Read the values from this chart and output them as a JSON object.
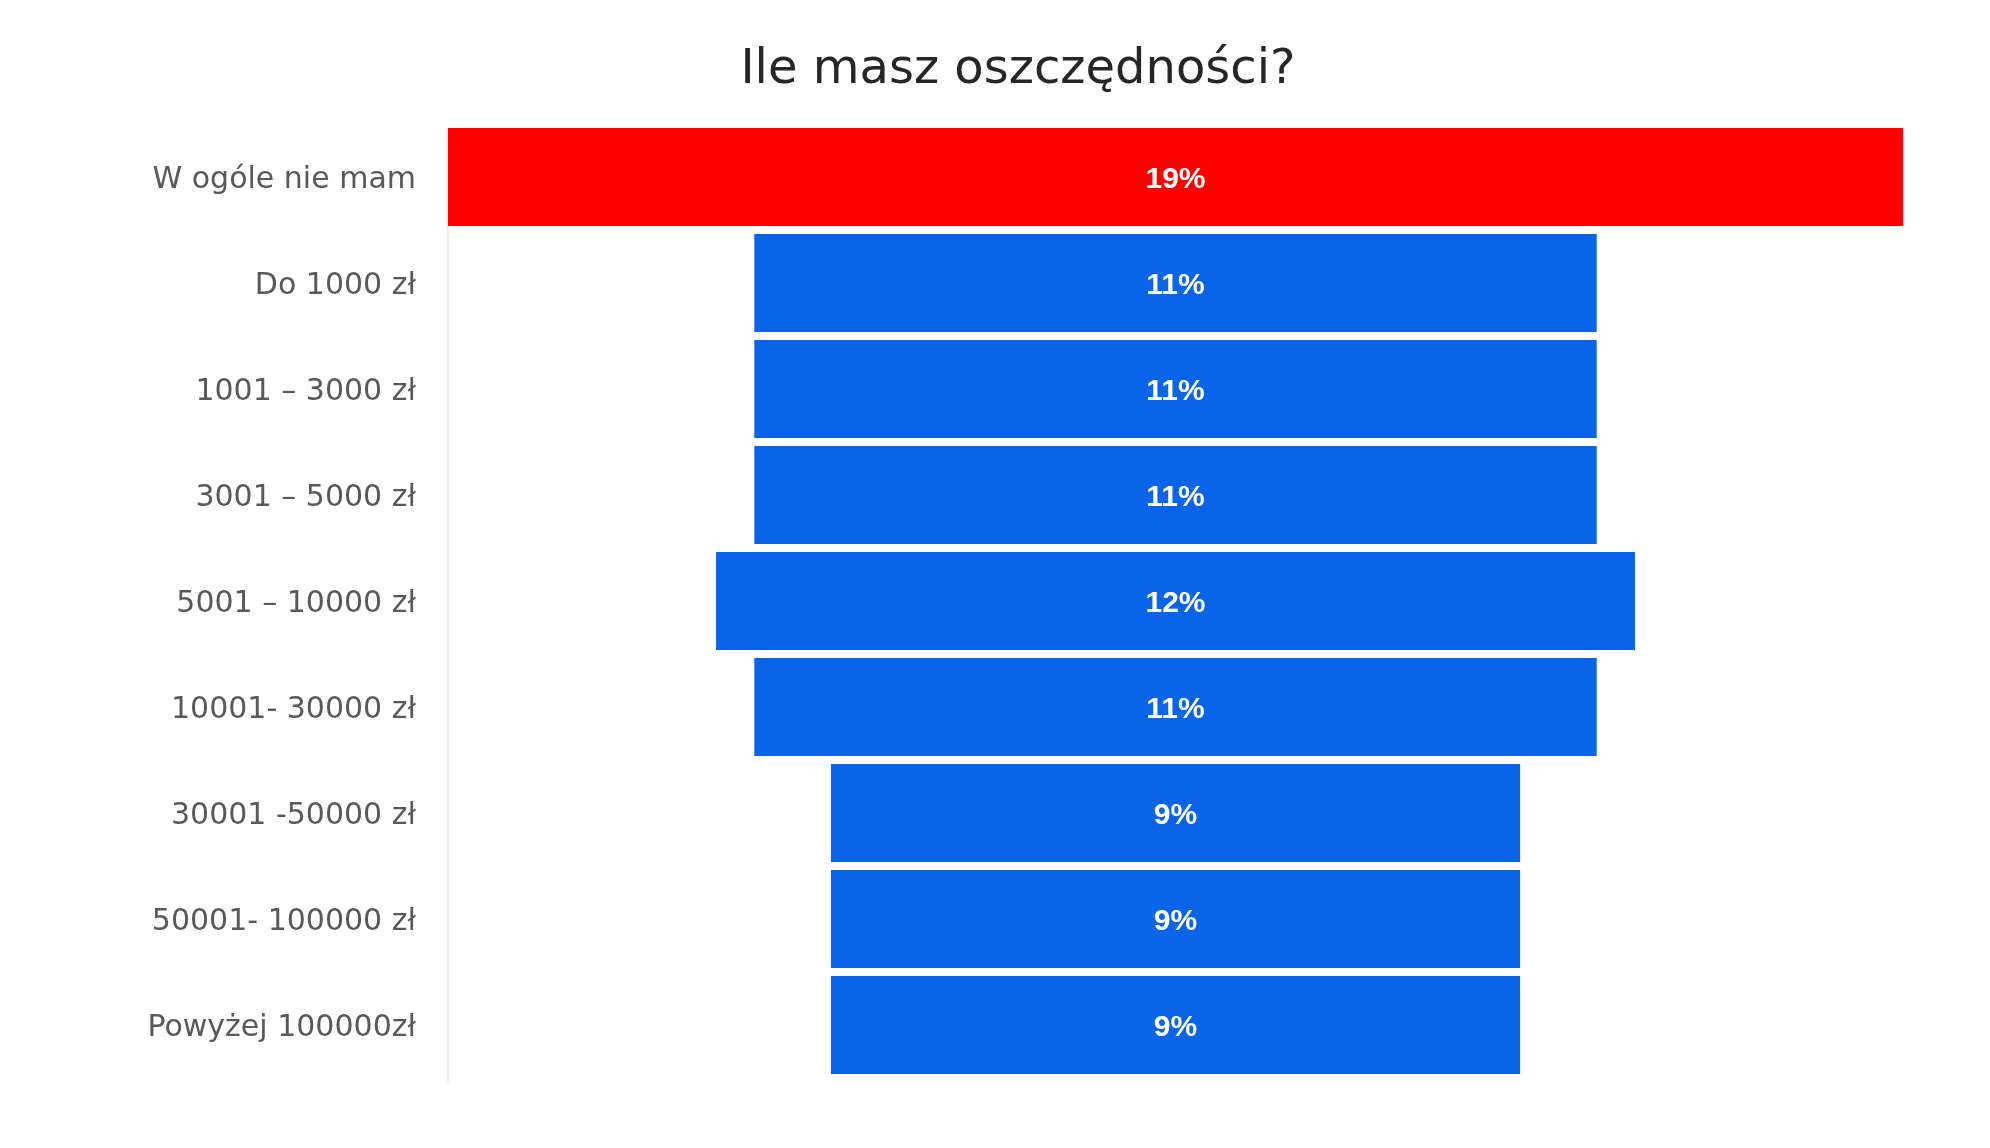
{
  "chart_data": {
    "type": "other",
    "title": "Ile masz oszczędności?",
    "categories": [
      "W ogóle nie mam",
      "Do 1000 zł",
      "1001 – 3000 zł",
      "3001 – 5000 zł",
      "5001 – 10000 zł",
      "10001- 30000 zł",
      "30001 -50000 zł",
      "50001- 100000 zł",
      "Powyżej 100000zł"
    ],
    "values": [
      19,
      11,
      11,
      11,
      12,
      11,
      9,
      9,
      9
    ],
    "colors": [
      "#ff0000",
      "#0a64e8",
      "#0a64e8",
      "#0a64e8",
      "#0a64e8",
      "#0a64e8",
      "#0a64e8",
      "#0a64e8",
      "#0a64e8"
    ],
    "value_labels": [
      "19%",
      "11%",
      "11%",
      "11%",
      "12%",
      "11%",
      "9%",
      "9%",
      "9%"
    ]
  }
}
